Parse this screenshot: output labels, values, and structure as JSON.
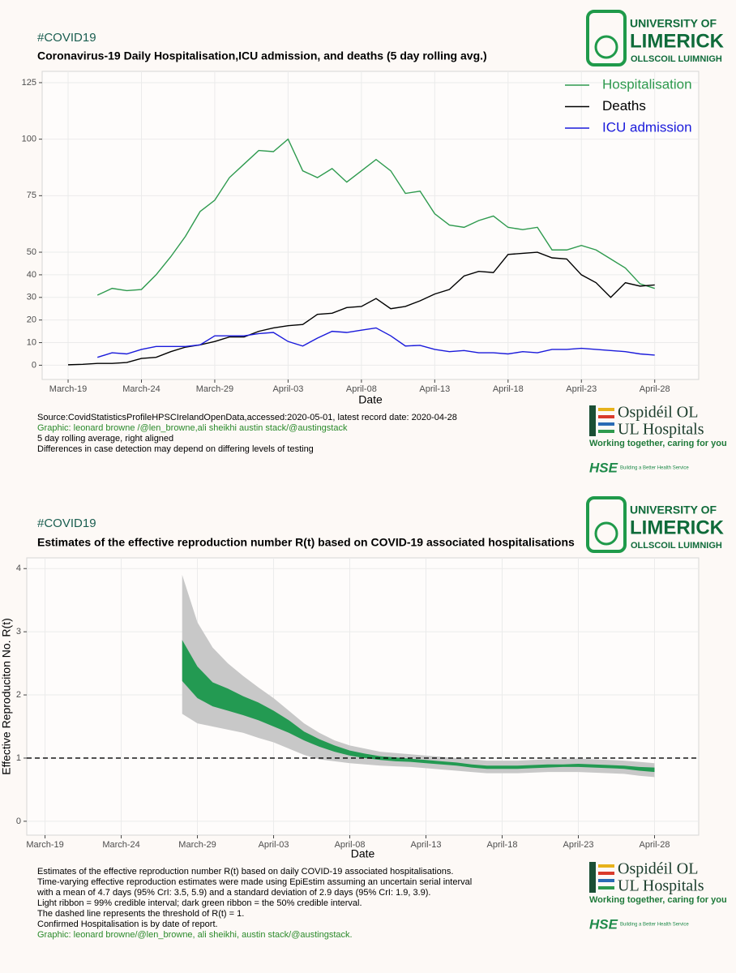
{
  "logos": {
    "ul": [
      "UNIVERSITY OF",
      "LIMERICK",
      "OLLSCOIL LUIMNIGH"
    ],
    "hospitals": [
      "Ospidéil OL",
      "UL Hospitals",
      "Working together, caring for you"
    ],
    "hse": [
      "HSE",
      "Building a Better Health Service"
    ]
  },
  "chart_data": [
    {
      "type": "line",
      "tag": "#COVID19",
      "title": "Coronavirus-19 Daily Hospitalisation,ICU admission, and deaths  (5 day rolling avg.)",
      "x_label": "Date",
      "categories": [
        "March-19",
        "March-20",
        "March-21",
        "March-22",
        "March-23",
        "March-24",
        "March-25",
        "March-26",
        "March-27",
        "March-28",
        "March-29",
        "March-30",
        "March-31",
        "April-01",
        "April-02",
        "April-03",
        "April-04",
        "April-05",
        "April-06",
        "April-07",
        "April-08",
        "April-09",
        "April-10",
        "April-11",
        "April-12",
        "April-13",
        "April-14",
        "April-15",
        "April-16",
        "April-17",
        "April-18",
        "April-19",
        "April-20",
        "April-21",
        "April-22",
        "April-23",
        "April-24",
        "April-25",
        "April-26",
        "April-27",
        "April-28"
      ],
      "xticks": [
        "March-19",
        "March-24",
        "March-29",
        "April-03",
        "April-08",
        "April-13",
        "April-18",
        "April-23",
        "April-28"
      ],
      "ylim": [
        -6.3,
        130
      ],
      "yticks": [
        0,
        10,
        20,
        30,
        40,
        50,
        75,
        100,
        125
      ],
      "grid": true,
      "legend": "top-right",
      "series": [
        {
          "name": "Hospitalisation",
          "color": "#2e9a4e",
          "values": [
            null,
            null,
            31,
            34,
            33,
            33.5,
            40,
            48,
            57,
            68,
            73,
            83,
            89,
            95,
            94.5,
            100,
            86,
            83,
            87,
            81,
            86,
            91,
            86,
            76,
            77,
            67,
            62,
            61,
            64,
            66,
            61,
            60,
            61,
            51,
            51,
            53,
            51,
            47,
            43,
            36,
            34
          ]
        },
        {
          "name": "Deaths",
          "color": "#000000",
          "values": [
            0.2,
            0.4,
            0.8,
            0.8,
            1.2,
            3,
            3.5,
            6,
            8,
            9,
            10.5,
            12.5,
            12.5,
            15,
            16.5,
            17.5,
            18,
            22.5,
            23,
            25.5,
            26,
            29.5,
            25,
            26,
            28.5,
            31.5,
            33.5,
            39.5,
            41.5,
            41,
            49,
            49.5,
            50,
            47.5,
            47,
            40,
            36.5,
            30,
            36.5,
            35,
            35.5
          ]
        },
        {
          "name": "ICU admission",
          "color": "#1a1adb",
          "values": [
            null,
            null,
            3.5,
            5.5,
            5,
            7,
            8.3,
            8.3,
            8.3,
            9,
            13,
            13,
            13,
            14,
            14.5,
            10.5,
            8.5,
            12,
            15,
            14.5,
            15.5,
            16.5,
            13,
            8.5,
            8.8,
            7,
            6,
            6.5,
            5.5,
            5.5,
            5,
            6,
            5.5,
            7,
            7,
            7.5,
            7,
            6.5,
            6,
            5,
            4.5
          ]
        }
      ],
      "notes": [
        {
          "text": "Source:CovidStatisticsProfileHPSCIrelandOpenData,accessed:2020-05-01, latest record date: 2020-04-28",
          "color": "#000000"
        },
        {
          "text": "Graphic: leonard browne /@len_browne,ali sheikhi austin stack/@austingstack",
          "color": "#2a8a2a"
        },
        {
          "text": "5 day rolling average, right aligned",
          "color": "#000000"
        },
        {
          "text": "Differences in case detection may depend on differing levels of testing",
          "color": "#000000"
        }
      ]
    },
    {
      "type": "ribbon",
      "tag": "#COVID19",
      "title": "Estimates of the effective reproduction number R(t) based on COVID-19 associated hospitalisations",
      "x_label": "Date",
      "y_label": "Effective Reproduciton No. R(t)",
      "categories": [
        "March-19",
        "March-20",
        "March-21",
        "March-22",
        "March-23",
        "March-24",
        "March-25",
        "March-26",
        "March-27",
        "March-28",
        "March-29",
        "March-30",
        "March-31",
        "April-01",
        "April-02",
        "April-03",
        "April-04",
        "April-05",
        "April-06",
        "April-07",
        "April-08",
        "April-09",
        "April-10",
        "April-11",
        "April-12",
        "April-13",
        "April-14",
        "April-15",
        "April-16",
        "April-17",
        "April-18",
        "April-19",
        "April-20",
        "April-21",
        "April-22",
        "April-23",
        "April-24",
        "April-25",
        "April-26",
        "April-27",
        "April-28"
      ],
      "xticks": [
        "March-19",
        "March-24",
        "March-29",
        "April-03",
        "April-08",
        "April-13",
        "April-18",
        "April-23",
        "April-28"
      ],
      "ylim": [
        -0.22,
        4.17
      ],
      "yticks": [
        0,
        1,
        2,
        3,
        4
      ],
      "grid": true,
      "reference_line": 1,
      "bands": [
        {
          "color": "#c8c8c8",
          "lower": [
            null,
            null,
            null,
            null,
            null,
            null,
            null,
            null,
            null,
            1.7,
            1.55,
            1.5,
            1.45,
            1.4,
            1.32,
            1.25,
            1.15,
            1.05,
            0.98,
            0.95,
            0.92,
            0.9,
            0.88,
            0.87,
            0.86,
            0.84,
            0.82,
            0.8,
            0.78,
            0.76,
            0.76,
            0.76,
            0.77,
            0.78,
            0.78,
            0.78,
            0.77,
            0.76,
            0.75,
            0.72,
            0.7
          ],
          "upper": [
            null,
            null,
            null,
            null,
            null,
            null,
            null,
            null,
            null,
            3.9,
            3.15,
            2.75,
            2.5,
            2.3,
            2.12,
            1.95,
            1.75,
            1.55,
            1.4,
            1.28,
            1.2,
            1.15,
            1.1,
            1.08,
            1.06,
            1.04,
            1.02,
            1.0,
            0.98,
            0.96,
            0.96,
            0.96,
            0.97,
            0.98,
            0.98,
            0.99,
            0.98,
            0.97,
            0.96,
            0.94,
            0.92
          ]
        },
        {
          "color": "#239a52",
          "lower": [
            null,
            null,
            null,
            null,
            null,
            null,
            null,
            null,
            null,
            2.22,
            1.95,
            1.82,
            1.75,
            1.68,
            1.6,
            1.5,
            1.4,
            1.28,
            1.18,
            1.1,
            1.04,
            1.0,
            0.97,
            0.95,
            0.94,
            0.92,
            0.9,
            0.88,
            0.85,
            0.83,
            0.83,
            0.83,
            0.84,
            0.85,
            0.86,
            0.86,
            0.85,
            0.84,
            0.83,
            0.8,
            0.78
          ],
          "upper": [
            null,
            null,
            null,
            null,
            null,
            null,
            null,
            null,
            null,
            2.87,
            2.45,
            2.2,
            2.1,
            1.98,
            1.88,
            1.75,
            1.6,
            1.42,
            1.3,
            1.2,
            1.12,
            1.07,
            1.03,
            1.01,
            0.99,
            0.97,
            0.95,
            0.93,
            0.9,
            0.88,
            0.88,
            0.88,
            0.89,
            0.9,
            0.9,
            0.91,
            0.9,
            0.89,
            0.88,
            0.86,
            0.85
          ]
        }
      ],
      "notes": [
        {
          "text": "Estimates of the effective reproduction number R(t) based on daily COVID-19 associated hospitalisations.",
          "color": "#000000"
        },
        {
          "text": "Time-varying effective reproduction estimates were made using EpiEstim assuming an uncertain serial interval",
          "color": "#000000"
        },
        {
          "text": "with a mean of 4.7 days (95% CrI: 3.5, 5.9) and a standard deviation of 2.9 days (95% CrI: 1.9, 3.9).",
          "color": "#000000"
        },
        {
          "text": "Light ribbon = 99% credible interval; dark green ribbon = the 50% credible interval.",
          "color": "#000000"
        },
        {
          "text": "The dashed line represents the threshold of R(t) = 1.",
          "color": "#000000"
        },
        {
          "text": "Confirmed Hospitalisation is by date of report.",
          "color": "#000000"
        },
        {
          "text": "Graphic: leonard browne/@len_browne, ali sheikhi, austin stack/@austingstack.",
          "color": "#2a8a2a"
        }
      ]
    }
  ]
}
